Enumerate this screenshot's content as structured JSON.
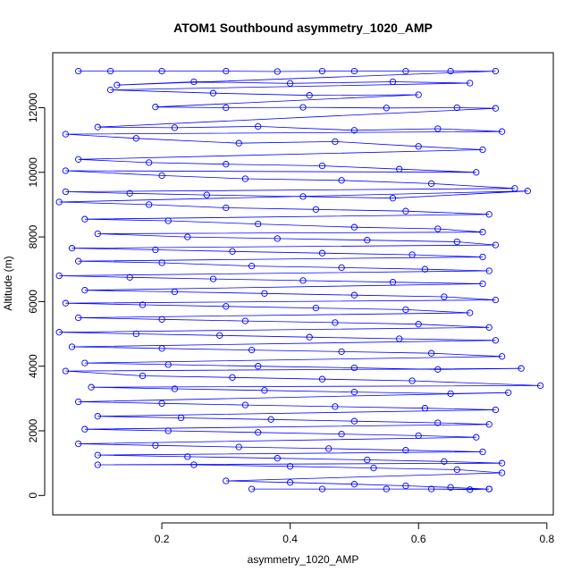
{
  "chart_data": {
    "type": "scatter",
    "title": "ATOM1 Southbound asymmetry_1020_AMP",
    "xlabel": "asymmetry_1020_AMP",
    "ylabel": "Altitude (m)",
    "xlim": [
      0.03,
      0.81
    ],
    "ylim": [
      -600,
      13700
    ],
    "x_ticks": [
      0.2,
      0.4,
      0.6,
      0.8
    ],
    "x_tick_labels": [
      "0.2",
      "0.4",
      "0.6",
      "0.8"
    ],
    "y_ticks": [
      0,
      2000,
      4000,
      6000,
      8000,
      10000,
      12000
    ],
    "y_tick_labels": [
      "0",
      "2000",
      "4000",
      "6000",
      "8000",
      "10000",
      "12000"
    ],
    "marker": "open-circle",
    "connected": true,
    "color": "#0000ff",
    "grid": false,
    "series": [
      {
        "name": "",
        "points": [
          [
            0.07,
            13130
          ],
          [
            0.12,
            13130
          ],
          [
            0.2,
            13130
          ],
          [
            0.3,
            13130
          ],
          [
            0.38,
            13120
          ],
          [
            0.45,
            13130
          ],
          [
            0.5,
            13130
          ],
          [
            0.58,
            13130
          ],
          [
            0.65,
            13130
          ],
          [
            0.72,
            13130
          ],
          [
            0.13,
            12700
          ],
          [
            0.25,
            12800
          ],
          [
            0.4,
            12750
          ],
          [
            0.56,
            12800
          ],
          [
            0.68,
            12760
          ],
          [
            0.12,
            12550
          ],
          [
            0.28,
            12450
          ],
          [
            0.43,
            12380
          ],
          [
            0.6,
            12400
          ],
          [
            0.19,
            12020
          ],
          [
            0.3,
            12000
          ],
          [
            0.42,
            12010
          ],
          [
            0.55,
            11990
          ],
          [
            0.66,
            12000
          ],
          [
            0.72,
            11980
          ],
          [
            0.1,
            11400
          ],
          [
            0.22,
            11380
          ],
          [
            0.35,
            11420
          ],
          [
            0.5,
            11300
          ],
          [
            0.63,
            11350
          ],
          [
            0.73,
            11260
          ],
          [
            0.05,
            11180
          ],
          [
            0.16,
            11050
          ],
          [
            0.32,
            10900
          ],
          [
            0.47,
            10950
          ],
          [
            0.6,
            10800
          ],
          [
            0.7,
            10700
          ],
          [
            0.07,
            10400
          ],
          [
            0.18,
            10300
          ],
          [
            0.3,
            10250
          ],
          [
            0.45,
            10200
          ],
          [
            0.57,
            10100
          ],
          [
            0.69,
            10000
          ],
          [
            0.05,
            10050
          ],
          [
            0.2,
            9900
          ],
          [
            0.33,
            9800
          ],
          [
            0.48,
            9750
          ],
          [
            0.62,
            9650
          ],
          [
            0.75,
            9500
          ],
          [
            0.05,
            9400
          ],
          [
            0.15,
            9350
          ],
          [
            0.27,
            9300
          ],
          [
            0.42,
            9250
          ],
          [
            0.56,
            9200
          ],
          [
            0.77,
            9420
          ],
          [
            0.04,
            9080
          ],
          [
            0.18,
            9000
          ],
          [
            0.3,
            8900
          ],
          [
            0.44,
            8850
          ],
          [
            0.58,
            8800
          ],
          [
            0.71,
            8700
          ],
          [
            0.08,
            8550
          ],
          [
            0.21,
            8500
          ],
          [
            0.35,
            8400
          ],
          [
            0.5,
            8300
          ],
          [
            0.63,
            8250
          ],
          [
            0.7,
            8150
          ],
          [
            0.1,
            8100
          ],
          [
            0.24,
            8000
          ],
          [
            0.38,
            7950
          ],
          [
            0.52,
            7900
          ],
          [
            0.66,
            7850
          ],
          [
            0.72,
            7750
          ],
          [
            0.06,
            7650
          ],
          [
            0.19,
            7600
          ],
          [
            0.31,
            7550
          ],
          [
            0.45,
            7500
          ],
          [
            0.59,
            7450
          ],
          [
            0.7,
            7380
          ],
          [
            0.07,
            7250
          ],
          [
            0.2,
            7200
          ],
          [
            0.34,
            7100
          ],
          [
            0.48,
            7050
          ],
          [
            0.61,
            7000
          ],
          [
            0.71,
            6950
          ],
          [
            0.04,
            6800
          ],
          [
            0.15,
            6750
          ],
          [
            0.28,
            6700
          ],
          [
            0.42,
            6650
          ],
          [
            0.56,
            6600
          ],
          [
            0.7,
            6550
          ],
          [
            0.08,
            6350
          ],
          [
            0.22,
            6300
          ],
          [
            0.36,
            6250
          ],
          [
            0.5,
            6200
          ],
          [
            0.64,
            6150
          ],
          [
            0.72,
            6050
          ],
          [
            0.05,
            5950
          ],
          [
            0.17,
            5900
          ],
          [
            0.3,
            5850
          ],
          [
            0.44,
            5800
          ],
          [
            0.58,
            5750
          ],
          [
            0.68,
            5650
          ],
          [
            0.07,
            5500
          ],
          [
            0.2,
            5450
          ],
          [
            0.33,
            5400
          ],
          [
            0.47,
            5350
          ],
          [
            0.6,
            5300
          ],
          [
            0.71,
            5200
          ],
          [
            0.04,
            5050
          ],
          [
            0.16,
            5000
          ],
          [
            0.29,
            4950
          ],
          [
            0.43,
            4900
          ],
          [
            0.57,
            4850
          ],
          [
            0.72,
            4800
          ],
          [
            0.06,
            4600
          ],
          [
            0.2,
            4550
          ],
          [
            0.34,
            4500
          ],
          [
            0.48,
            4450
          ],
          [
            0.62,
            4400
          ],
          [
            0.73,
            4300
          ],
          [
            0.08,
            4100
          ],
          [
            0.21,
            4050
          ],
          [
            0.35,
            4000
          ],
          [
            0.5,
            3950
          ],
          [
            0.63,
            3900
          ],
          [
            0.76,
            3930
          ],
          [
            0.05,
            3850
          ],
          [
            0.17,
            3700
          ],
          [
            0.31,
            3650
          ],
          [
            0.45,
            3600
          ],
          [
            0.59,
            3550
          ],
          [
            0.79,
            3400
          ],
          [
            0.09,
            3350
          ],
          [
            0.22,
            3300
          ],
          [
            0.36,
            3250
          ],
          [
            0.5,
            3200
          ],
          [
            0.65,
            3150
          ],
          [
            0.74,
            3180
          ],
          [
            0.07,
            2900
          ],
          [
            0.2,
            2850
          ],
          [
            0.33,
            2800
          ],
          [
            0.47,
            2750
          ],
          [
            0.61,
            2700
          ],
          [
            0.72,
            2650
          ],
          [
            0.1,
            2450
          ],
          [
            0.23,
            2400
          ],
          [
            0.37,
            2350
          ],
          [
            0.5,
            2300
          ],
          [
            0.63,
            2250
          ],
          [
            0.71,
            2200
          ],
          [
            0.08,
            2050
          ],
          [
            0.21,
            2000
          ],
          [
            0.35,
            1950
          ],
          [
            0.48,
            1900
          ],
          [
            0.6,
            1850
          ],
          [
            0.69,
            1800
          ],
          [
            0.07,
            1600
          ],
          [
            0.19,
            1550
          ],
          [
            0.32,
            1500
          ],
          [
            0.46,
            1450
          ],
          [
            0.58,
            1400
          ],
          [
            0.7,
            1350
          ],
          [
            0.1,
            1250
          ],
          [
            0.24,
            1200
          ],
          [
            0.38,
            1150
          ],
          [
            0.52,
            1100
          ],
          [
            0.64,
            1050
          ],
          [
            0.73,
            1000
          ],
          [
            0.1,
            950
          ],
          [
            0.25,
            950
          ],
          [
            0.4,
            900
          ],
          [
            0.53,
            850
          ],
          [
            0.66,
            800
          ],
          [
            0.73,
            700
          ],
          [
            0.3,
            450
          ],
          [
            0.4,
            400
          ],
          [
            0.5,
            350
          ],
          [
            0.58,
            300
          ],
          [
            0.65,
            250
          ],
          [
            0.71,
            200
          ],
          [
            0.34,
            200
          ],
          [
            0.45,
            200
          ],
          [
            0.55,
            200
          ],
          [
            0.62,
            200
          ],
          [
            0.68,
            180
          ],
          [
            0.71,
            200
          ]
        ]
      }
    ]
  }
}
